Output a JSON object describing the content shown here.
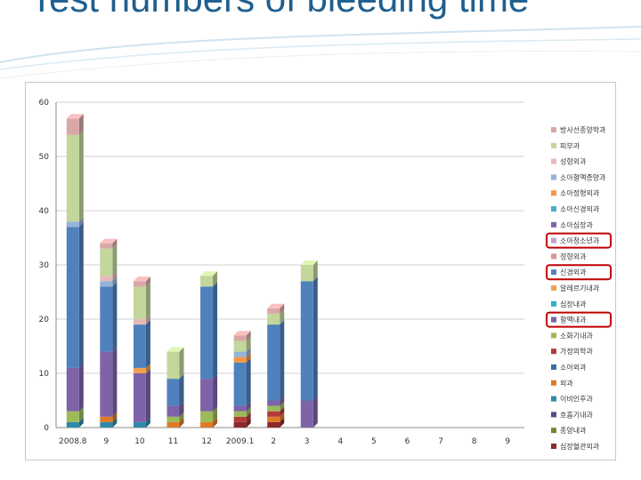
{
  "slide": {
    "title": "Test numbers of bleeding time"
  },
  "chart_data": {
    "type": "bar",
    "stacked": true,
    "title": "",
    "xlabel": "",
    "ylabel": "",
    "ylim": [
      0,
      60
    ],
    "yticks": [
      0,
      10,
      20,
      30,
      40,
      50,
      60
    ],
    "grid": true,
    "legend_position": "right",
    "categories": [
      "2008.8",
      "9",
      "10",
      "11",
      "12",
      "2009.1",
      "2",
      "3",
      "4",
      "5",
      "6",
      "7",
      "8",
      "9"
    ],
    "series": [
      {
        "name": "심장혈관외과",
        "color": "#8b2a2a",
        "values": [
          0,
          0,
          0,
          0,
          0,
          1,
          1,
          0,
          0,
          0,
          0,
          0,
          0,
          0
        ]
      },
      {
        "name": "종양내과",
        "color": "#6f8a2e",
        "values": [
          0,
          0,
          0,
          0,
          0,
          0,
          0,
          0,
          0,
          0,
          0,
          0,
          0,
          0
        ]
      },
      {
        "name": "호흡기내과",
        "color": "#5b4a8a",
        "values": [
          0,
          0,
          0,
          0,
          0,
          0,
          0,
          0,
          0,
          0,
          0,
          0,
          0,
          0
        ]
      },
      {
        "name": "이비인후과",
        "color": "#2e8aa8",
        "values": [
          1,
          1,
          1,
          0,
          0,
          0,
          0,
          0,
          0,
          0,
          0,
          0,
          0,
          0
        ]
      },
      {
        "name": "외과",
        "color": "#e07a26",
        "values": [
          0,
          1,
          0,
          1,
          1,
          0,
          1,
          0,
          0,
          0,
          0,
          0,
          0,
          0
        ]
      },
      {
        "name": "소아외과",
        "color": "#3d6ba8",
        "values": [
          0,
          0,
          0,
          0,
          0,
          0,
          0,
          0,
          0,
          0,
          0,
          0,
          0,
          0
        ]
      },
      {
        "name": "가정의학과",
        "color": "#b23b3b",
        "values": [
          0,
          0,
          0,
          0,
          0,
          1,
          1,
          0,
          0,
          0,
          0,
          0,
          0,
          0
        ]
      },
      {
        "name": "소화기내과",
        "color": "#9bbb59",
        "values": [
          2,
          0,
          0,
          1,
          2,
          1,
          1,
          0,
          0,
          0,
          0,
          0,
          0,
          0
        ]
      },
      {
        "name": "혈액내과",
        "color": "#7e63a8",
        "values": [
          8,
          12,
          9,
          2,
          6,
          1,
          1,
          5,
          0,
          0,
          0,
          0,
          0,
          0
        ]
      },
      {
        "name": "심장내과",
        "color": "#2bb0c8",
        "values": [
          0,
          0,
          0,
          0,
          0,
          0,
          0,
          0,
          0,
          0,
          0,
          0,
          0,
          0
        ]
      },
      {
        "name": "알레르기내과",
        "color": "#f0a050",
        "values": [
          0,
          0,
          1,
          0,
          0,
          0,
          0,
          0,
          0,
          0,
          0,
          0,
          0,
          0
        ]
      },
      {
        "name": "신경외과",
        "color": "#4f81bd",
        "values": [
          26,
          12,
          8,
          5,
          17,
          8,
          14,
          22,
          0,
          0,
          0,
          0,
          0,
          0
        ]
      },
      {
        "name": "정형외과",
        "color": "#d99694",
        "values": [
          0,
          0,
          0,
          0,
          0,
          0,
          0,
          0,
          0,
          0,
          0,
          0,
          0,
          0
        ]
      },
      {
        "name": "소아청소년과",
        "color": "#c8a2c8",
        "values": [
          0,
          0,
          0,
          0,
          0,
          0,
          0,
          0,
          0,
          0,
          0,
          0,
          0,
          0
        ]
      },
      {
        "name": "소아심장과",
        "color": "#8064a2",
        "values": [
          0,
          0,
          0,
          0,
          0,
          0,
          0,
          0,
          0,
          0,
          0,
          0,
          0,
          0
        ]
      },
      {
        "name": "소아신경외과",
        "color": "#4bacc6",
        "values": [
          0,
          0,
          0,
          0,
          0,
          0,
          0,
          0,
          0,
          0,
          0,
          0,
          0,
          0
        ]
      },
      {
        "name": "소아정형외과",
        "color": "#f79646",
        "values": [
          0,
          0,
          0,
          0,
          0,
          1,
          0,
          0,
          0,
          0,
          0,
          0,
          0,
          0
        ]
      },
      {
        "name": "소아혈액종양과",
        "color": "#95b3d7",
        "values": [
          1,
          1,
          0,
          0,
          0,
          1,
          0,
          0,
          0,
          0,
          0,
          0,
          0,
          0
        ]
      },
      {
        "name": "성형외과",
        "color": "#e6b9b8",
        "values": [
          0,
          1,
          1,
          0,
          0,
          0,
          0,
          0,
          0,
          0,
          0,
          0,
          0,
          0
        ]
      },
      {
        "name": "피부과",
        "color": "#c3d69b",
        "values": [
          16,
          5,
          6,
          5,
          2,
          2,
          2,
          3,
          0,
          0,
          0,
          0,
          0,
          0
        ]
      },
      {
        "name": "방사선종양학과",
        "color": "#d9a7a7",
        "values": [
          3,
          1,
          1,
          0,
          0,
          1,
          1,
          0,
          0,
          0,
          0,
          0,
          0,
          0
        ]
      }
    ],
    "legend_order": [
      "방사선종양학과",
      "피부과",
      "성형외과",
      "소아혈액종양과",
      "소아정형외과",
      "소아신경외과",
      "소아심장과",
      "소아청소년과",
      "정형외과",
      "신경외과",
      "알레르기내과",
      "심장내과",
      "혈액내과",
      "소화기내과",
      "가정의학과",
      "소아외과",
      "외과",
      "이비인후과",
      "호흡기내과",
      "종양내과",
      "심장혈관외과"
    ],
    "highlighted_legend": [
      "소아청소년과",
      "신경외과",
      "혈액내과"
    ],
    "highlight_color": "#c00000"
  }
}
